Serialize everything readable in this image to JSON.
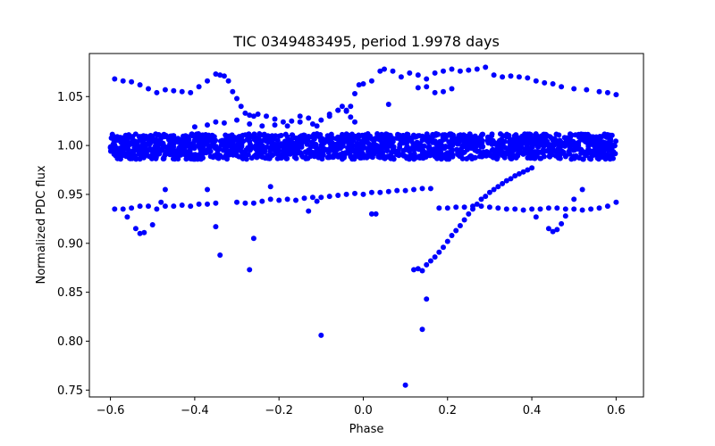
{
  "chart_data": {
    "type": "scatter",
    "title": "TIC 0349483495, period 1.9978 days",
    "xlabel": "Phase",
    "ylabel": "Normalized PDC flux",
    "xlim": [
      -0.65,
      0.665
    ],
    "ylim": [
      0.743,
      1.094
    ],
    "grid": false,
    "marker_color": "#0000ff",
    "x_ticks": [
      -0.6,
      -0.4,
      -0.2,
      0.0,
      0.2,
      0.4,
      0.6
    ],
    "x_tick_labels": [
      "−0.6",
      "−0.4",
      "−0.2",
      "0.0",
      "0.2",
      "0.4",
      "0.6"
    ],
    "y_ticks": [
      0.75,
      0.8,
      0.85,
      0.9,
      0.95,
      1.0,
      1.05
    ],
    "y_tick_labels": [
      "0.75",
      "0.80",
      "0.85",
      "0.90",
      "0.95",
      "1.00",
      "1.05"
    ],
    "main_band": {
      "x_range": [
        -0.6,
        0.6
      ],
      "y_center": 0.999,
      "y_half_width": 0.013
    },
    "series": [
      {
        "name": "upper-arc",
        "x": [
          -0.59,
          -0.57,
          -0.55,
          -0.53,
          -0.51,
          -0.49,
          -0.47,
          -0.45,
          -0.43,
          -0.41,
          -0.39,
          -0.37,
          -0.35,
          -0.34,
          -0.33,
          -0.32,
          -0.31,
          -0.3,
          -0.29,
          -0.28,
          -0.27,
          -0.26,
          -0.25,
          -0.23,
          -0.21,
          -0.19,
          -0.17,
          -0.15,
          -0.13,
          -0.11,
          -0.08,
          -0.06,
          -0.04,
          -0.03,
          -0.02,
          -0.01,
          0.0,
          0.02,
          0.04,
          0.05,
          0.07,
          0.09,
          0.11,
          0.13,
          0.15,
          0.17,
          0.19,
          0.21,
          0.23,
          0.25,
          0.27,
          0.29,
          0.31,
          0.33,
          0.35,
          0.37,
          0.39,
          0.41,
          0.43,
          0.45,
          0.47,
          0.5,
          0.53,
          0.56,
          0.58,
          0.6
        ],
        "y": [
          1.068,
          1.066,
          1.065,
          1.062,
          1.058,
          1.054,
          1.057,
          1.056,
          1.055,
          1.054,
          1.06,
          1.066,
          1.073,
          1.072,
          1.071,
          1.066,
          1.055,
          1.048,
          1.04,
          1.033,
          1.031,
          1.03,
          1.032,
          1.03,
          1.027,
          1.024,
          1.025,
          1.03,
          1.028,
          1.02,
          1.03,
          1.036,
          1.036,
          1.04,
          1.053,
          1.062,
          1.063,
          1.066,
          1.076,
          1.078,
          1.076,
          1.07,
          1.074,
          1.072,
          1.068,
          1.074,
          1.076,
          1.078,
          1.076,
          1.077,
          1.078,
          1.08,
          1.072,
          1.07,
          1.071,
          1.07,
          1.069,
          1.066,
          1.064,
          1.063,
          1.06,
          1.058,
          1.057,
          1.055,
          1.054,
          1.052
        ]
      },
      {
        "name": "mid-upper-scatter",
        "x": [
          -0.4,
          -0.37,
          -0.35,
          -0.33,
          -0.3,
          -0.27,
          -0.24,
          -0.21,
          -0.18,
          -0.15,
          -0.12,
          -0.1,
          -0.08,
          -0.06,
          -0.05,
          -0.04,
          -0.03,
          -0.02,
          0.06,
          0.13,
          0.15,
          0.17,
          0.19,
          0.21
        ],
        "y": [
          1.019,
          1.021,
          1.024,
          1.023,
          1.026,
          1.022,
          1.02,
          1.021,
          1.02,
          1.024,
          1.022,
          1.026,
          1.032,
          1.036,
          1.04,
          1.035,
          1.029,
          1.024,
          1.042,
          1.059,
          1.06,
          1.054,
          1.055,
          1.058
        ]
      },
      {
        "name": "lower-arc",
        "x": [
          -0.59,
          -0.57,
          -0.55,
          -0.53,
          -0.51,
          -0.49,
          -0.47,
          -0.45,
          -0.43,
          -0.41,
          -0.39,
          -0.37,
          -0.35,
          -0.3,
          -0.28,
          -0.26,
          -0.24,
          -0.22,
          -0.2,
          -0.18,
          -0.16,
          -0.14,
          -0.12,
          -0.1,
          -0.08,
          -0.06,
          -0.04,
          -0.02,
          0.0,
          0.02,
          0.04,
          0.06,
          0.08,
          0.1,
          0.12,
          0.14,
          0.16,
          0.18,
          0.2,
          0.22,
          0.24,
          0.26,
          0.28,
          0.3,
          0.32,
          0.34,
          0.36,
          0.38,
          0.4,
          0.42,
          0.44,
          0.46,
          0.48,
          0.5,
          0.52,
          0.54,
          0.56,
          0.58,
          0.6
        ],
        "y": [
          0.935,
          0.935,
          0.936,
          0.938,
          0.938,
          0.935,
          0.938,
          0.938,
          0.939,
          0.938,
          0.94,
          0.94,
          0.941,
          0.942,
          0.941,
          0.941,
          0.943,
          0.945,
          0.944,
          0.945,
          0.944,
          0.946,
          0.947,
          0.947,
          0.948,
          0.949,
          0.95,
          0.951,
          0.95,
          0.952,
          0.952,
          0.953,
          0.954,
          0.954,
          0.955,
          0.956,
          0.956,
          0.936,
          0.936,
          0.937,
          0.937,
          0.938,
          0.938,
          0.937,
          0.936,
          0.935,
          0.935,
          0.934,
          0.935,
          0.935,
          0.936,
          0.936,
          0.935,
          0.935,
          0.934,
          0.935,
          0.936,
          0.938,
          0.942
        ]
      },
      {
        "name": "egress-arc",
        "x": [
          0.12,
          0.13,
          0.14,
          0.15,
          0.16,
          0.17,
          0.18,
          0.19,
          0.2,
          0.21,
          0.22,
          0.23,
          0.24,
          0.25,
          0.26,
          0.27,
          0.28,
          0.29,
          0.3,
          0.31,
          0.32,
          0.33,
          0.34,
          0.35,
          0.36,
          0.37,
          0.38,
          0.39,
          0.4
        ],
        "y": [
          0.873,
          0.874,
          0.872,
          0.878,
          0.882,
          0.886,
          0.891,
          0.896,
          0.902,
          0.908,
          0.913,
          0.918,
          0.924,
          0.93,
          0.935,
          0.94,
          0.945,
          0.948,
          0.952,
          0.955,
          0.958,
          0.961,
          0.964,
          0.966,
          0.969,
          0.971,
          0.973,
          0.975,
          0.977
        ]
      },
      {
        "name": "outliers",
        "x": [
          -0.56,
          -0.54,
          -0.53,
          -0.52,
          -0.5,
          -0.48,
          -0.47,
          -0.37,
          -0.35,
          -0.34,
          -0.27,
          -0.26,
          -0.22,
          -0.13,
          -0.11,
          -0.1,
          0.02,
          0.03,
          0.1,
          0.14,
          0.15,
          0.41,
          0.44,
          0.45,
          0.46,
          0.47,
          0.48,
          0.5,
          0.52
        ],
        "y": [
          0.927,
          0.915,
          0.91,
          0.911,
          0.919,
          0.942,
          0.955,
          0.955,
          0.917,
          0.888,
          0.873,
          0.905,
          0.958,
          0.933,
          0.943,
          0.806,
          0.93,
          0.93,
          0.755,
          0.812,
          0.843,
          0.927,
          0.915,
          0.912,
          0.914,
          0.92,
          0.928,
          0.945,
          0.955
        ]
      }
    ]
  }
}
